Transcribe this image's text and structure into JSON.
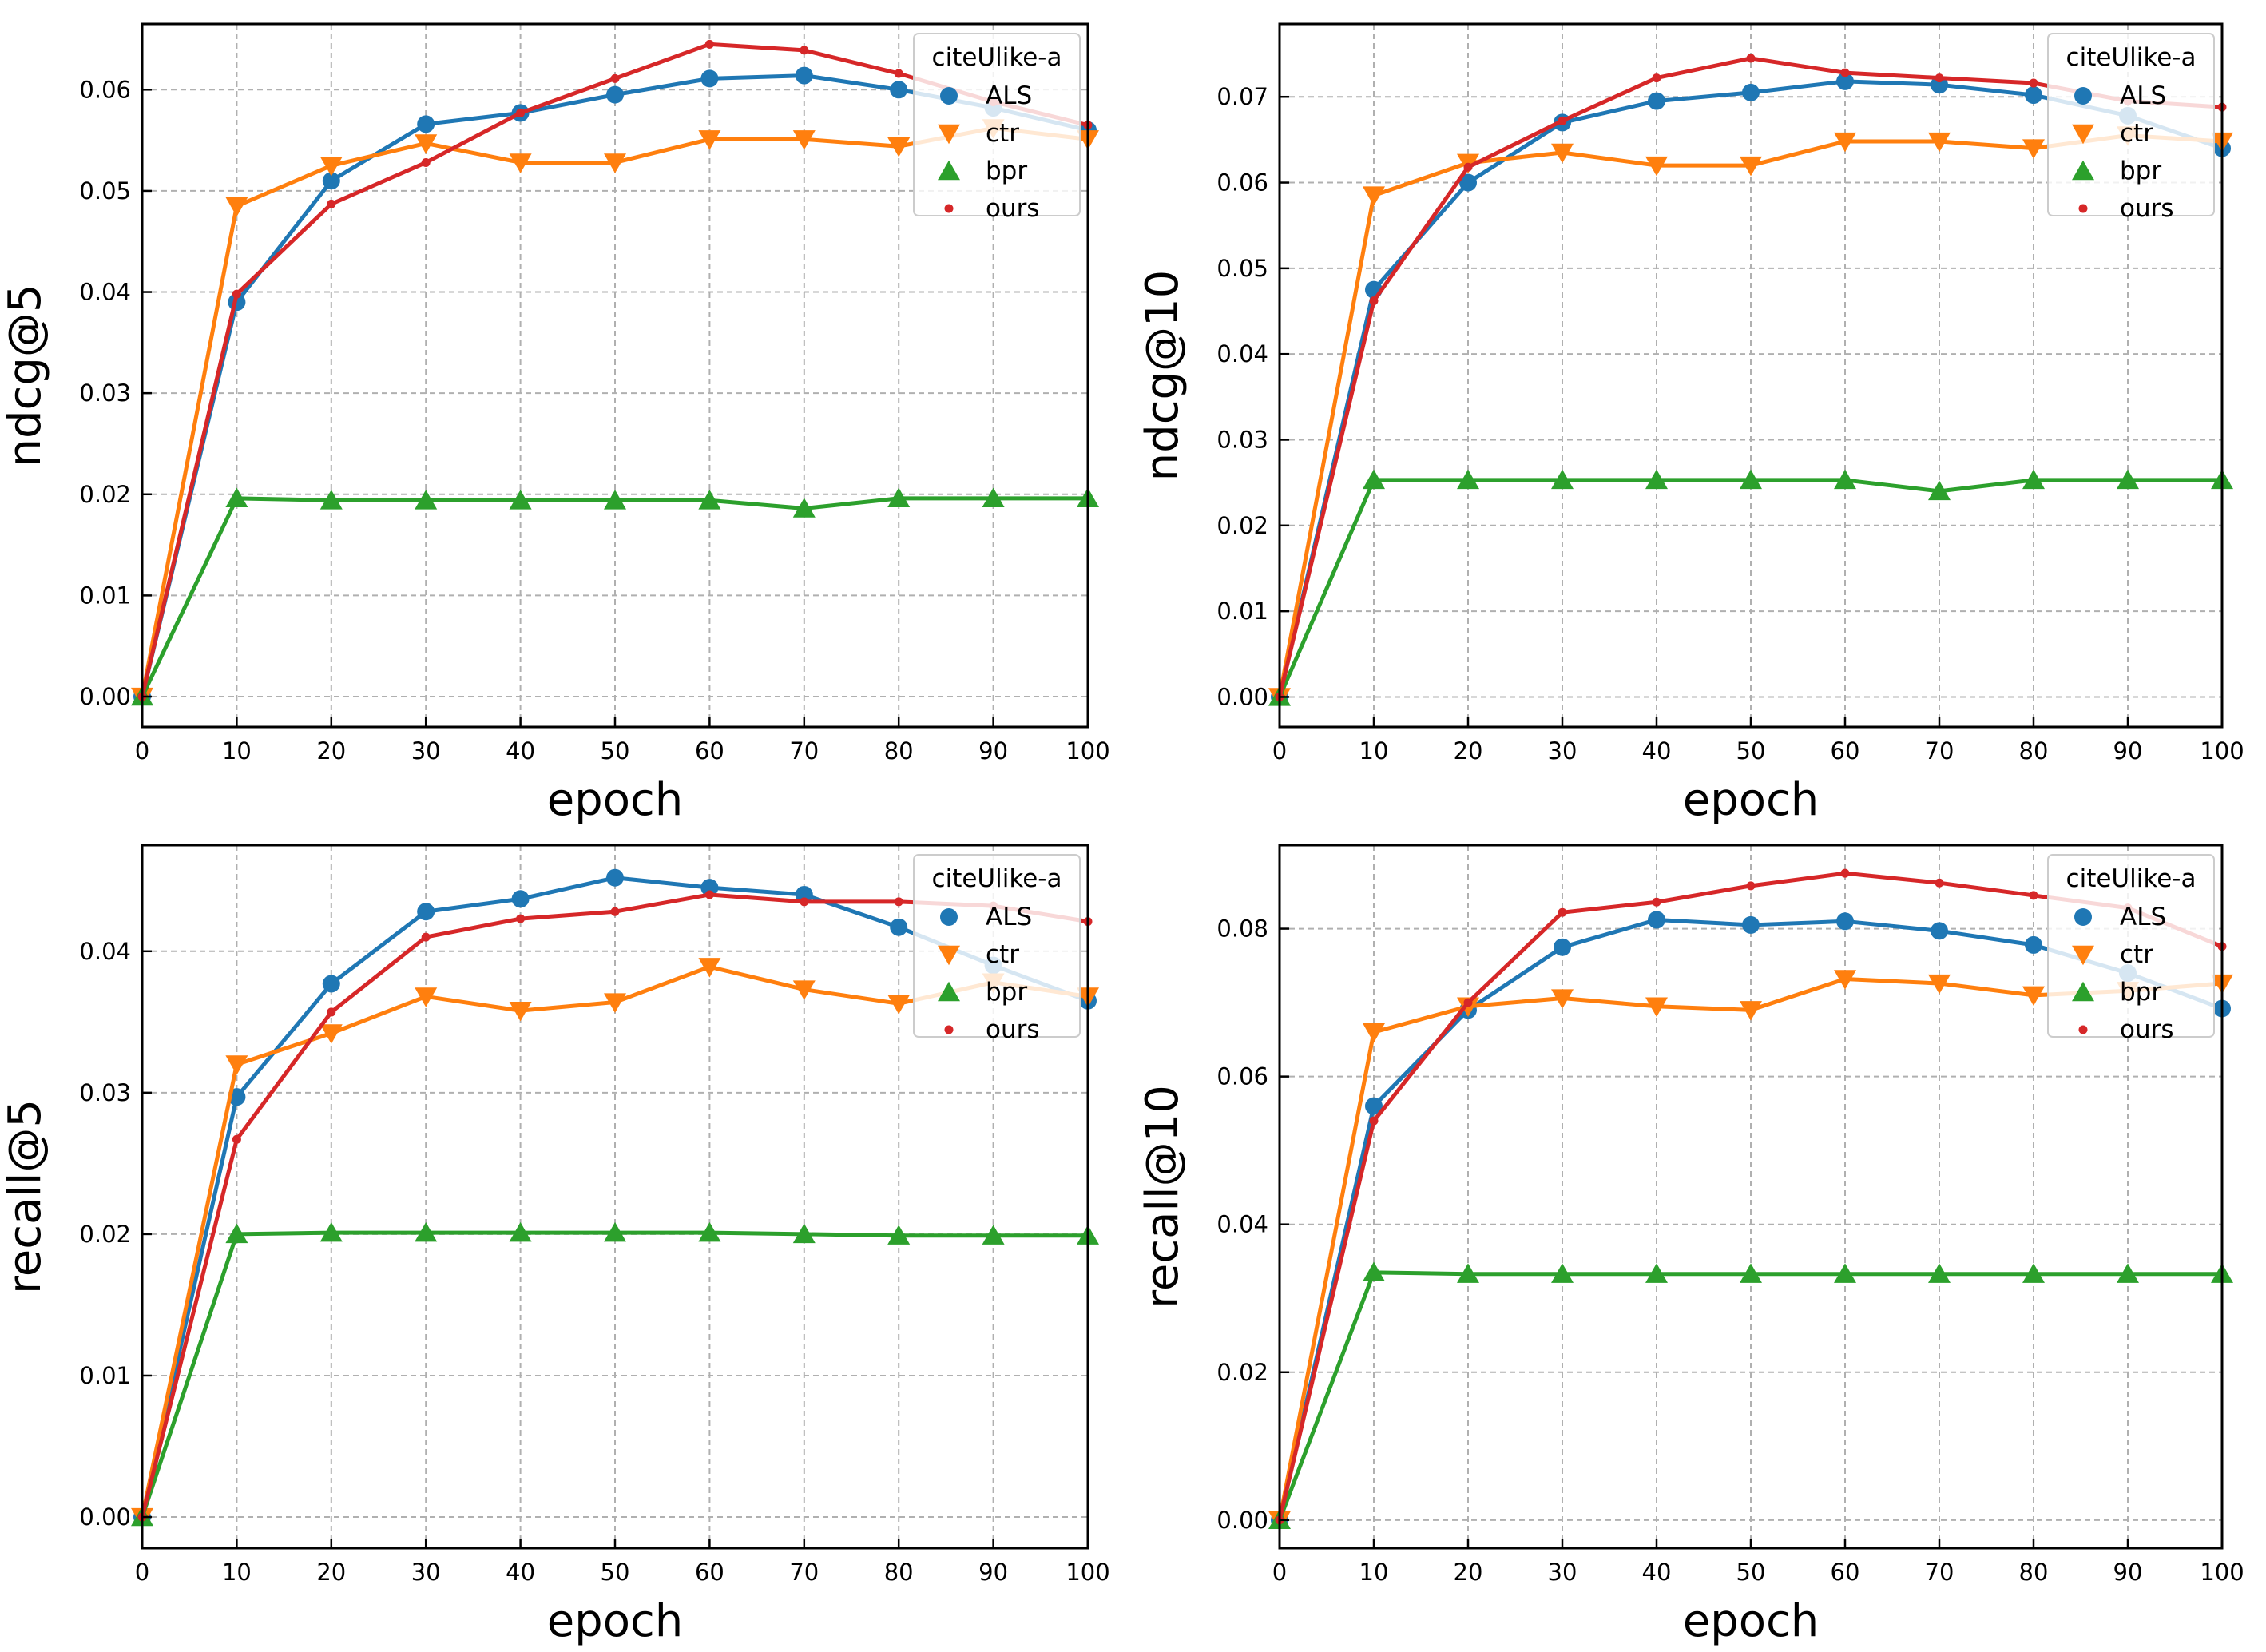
{
  "colors": {
    "ALS": "#1f77b4",
    "ctr": "#ff7f0e",
    "bpr": "#2ca02c",
    "ours": "#d62728",
    "grid": "#b0b0b0",
    "axis": "#000000"
  },
  "chart_data": [
    {
      "type": "line",
      "title": "",
      "xlabel": "epoch",
      "ylabel": "ndcg@5",
      "xlim": [
        0,
        100
      ],
      "ylim": [
        -0.003,
        0.0665
      ],
      "x": [
        0,
        10,
        20,
        30,
        40,
        50,
        60,
        70,
        80,
        90,
        100
      ],
      "xticks": [
        "0",
        "10",
        "20",
        "30",
        "40",
        "50",
        "60",
        "70",
        "80",
        "90",
        "100"
      ],
      "yticks": [
        0.0,
        0.01,
        0.02,
        0.03,
        0.04,
        0.05,
        0.06
      ],
      "ytick_labels": [
        "0.00",
        "0.01",
        "0.02",
        "0.03",
        "0.04",
        "0.05",
        "0.06"
      ],
      "grid": true,
      "legend": {
        "title": "citeUlike-a",
        "location": "top-right",
        "entries": [
          "ALS",
          "ctr",
          "bpr",
          "ours"
        ]
      },
      "series": [
        {
          "name": "ALS",
          "marker": "circle",
          "values": [
            0.0,
            0.039,
            0.051,
            0.0566,
            0.0577,
            0.0595,
            0.0611,
            0.0614,
            0.06,
            0.0582,
            0.056
          ]
        },
        {
          "name": "ctr",
          "marker": "triangle-down",
          "values": [
            0.0,
            0.0485,
            0.0525,
            0.0547,
            0.0528,
            0.0528,
            0.0551,
            0.0551,
            0.0544,
            0.0562,
            0.0551
          ]
        },
        {
          "name": "bpr",
          "marker": "triangle-up",
          "values": [
            0.0,
            0.0196,
            0.0194,
            0.0194,
            0.0194,
            0.0194,
            0.0194,
            0.0186,
            0.0196,
            0.0196,
            0.0196
          ]
        },
        {
          "name": "ours",
          "marker": "point",
          "values": [
            0.0,
            0.0398,
            0.0487,
            0.0528,
            0.0577,
            0.0611,
            0.0645,
            0.0639,
            0.0616,
            0.0588,
            0.0565
          ]
        }
      ]
    },
    {
      "type": "line",
      "title": "",
      "xlabel": "epoch",
      "ylabel": "ndcg@10",
      "xlim": [
        0,
        100
      ],
      "ylim": [
        -0.0035,
        0.0785
      ],
      "x": [
        0,
        10,
        20,
        30,
        40,
        50,
        60,
        70,
        80,
        90,
        100
      ],
      "xticks": [
        "0",
        "10",
        "20",
        "30",
        "40",
        "50",
        "60",
        "70",
        "80",
        "90",
        "100"
      ],
      "yticks": [
        0.0,
        0.01,
        0.02,
        0.03,
        0.04,
        0.05,
        0.06,
        0.07
      ],
      "ytick_labels": [
        "0.00",
        "0.01",
        "0.02",
        "0.03",
        "0.04",
        "0.05",
        "0.06",
        "0.07"
      ],
      "grid": true,
      "legend": {
        "title": "citeUlike-a",
        "location": "top-right",
        "entries": [
          "ALS",
          "ctr",
          "bpr",
          "ours"
        ]
      },
      "series": [
        {
          "name": "ALS",
          "marker": "circle",
          "values": [
            0.0,
            0.0475,
            0.06,
            0.067,
            0.0695,
            0.0705,
            0.0718,
            0.0714,
            0.0702,
            0.0678,
            0.064
          ]
        },
        {
          "name": "ctr",
          "marker": "triangle-down",
          "values": [
            0.0,
            0.0585,
            0.0623,
            0.0635,
            0.062,
            0.062,
            0.0648,
            0.0648,
            0.064,
            0.0655,
            0.0648
          ]
        },
        {
          "name": "bpr",
          "marker": "triangle-up",
          "values": [
            0.0,
            0.0253,
            0.0253,
            0.0253,
            0.0253,
            0.0253,
            0.0253,
            0.024,
            0.0253,
            0.0253,
            0.0253
          ]
        },
        {
          "name": "ours",
          "marker": "point",
          "values": [
            0.0,
            0.0462,
            0.0618,
            0.0672,
            0.0722,
            0.0745,
            0.0728,
            0.0722,
            0.0716,
            0.0695,
            0.0688
          ]
        }
      ]
    },
    {
      "type": "line",
      "title": "",
      "xlabel": "epoch",
      "ylabel": "recall@5",
      "xlim": [
        0,
        100
      ],
      "ylim": [
        -0.0022,
        0.0475
      ],
      "x": [
        0,
        10,
        20,
        30,
        40,
        50,
        60,
        70,
        80,
        90,
        100
      ],
      "xticks": [
        "0",
        "10",
        "20",
        "30",
        "40",
        "50",
        "60",
        "70",
        "80",
        "90",
        "100"
      ],
      "yticks": [
        0.0,
        0.01,
        0.02,
        0.03,
        0.04
      ],
      "ytick_labels": [
        "0.00",
        "0.01",
        "0.02",
        "0.03",
        "0.04"
      ],
      "grid": true,
      "legend": {
        "title": "citeUlike-a",
        "location": "top-right",
        "entries": [
          "ALS",
          "ctr",
          "bpr",
          "ours"
        ]
      },
      "series": [
        {
          "name": "ALS",
          "marker": "circle",
          "values": [
            0.0,
            0.0297,
            0.0377,
            0.0428,
            0.0437,
            0.0452,
            0.0445,
            0.044,
            0.0417,
            0.039,
            0.0365
          ]
        },
        {
          "name": "ctr",
          "marker": "triangle-down",
          "values": [
            0.0,
            0.032,
            0.0342,
            0.0368,
            0.0358,
            0.0364,
            0.0389,
            0.0373,
            0.0363,
            0.0378,
            0.0368
          ]
        },
        {
          "name": "bpr",
          "marker": "triangle-up",
          "values": [
            0.0,
            0.02,
            0.0201,
            0.0201,
            0.0201,
            0.0201,
            0.0201,
            0.02,
            0.0199,
            0.0199,
            0.0199
          ]
        },
        {
          "name": "ours",
          "marker": "point",
          "values": [
            0.0,
            0.0267,
            0.0357,
            0.041,
            0.0423,
            0.0428,
            0.044,
            0.0435,
            0.0435,
            0.0432,
            0.0421
          ]
        }
      ]
    },
    {
      "type": "line",
      "title": "",
      "xlabel": "epoch",
      "ylabel": "recall@10",
      "xlim": [
        0,
        100
      ],
      "ylim": [
        -0.0038,
        0.0913
      ],
      "x": [
        0,
        10,
        20,
        30,
        40,
        50,
        60,
        70,
        80,
        90,
        100
      ],
      "xticks": [
        "0",
        "10",
        "20",
        "30",
        "40",
        "50",
        "60",
        "70",
        "80",
        "90",
        "100"
      ],
      "yticks": [
        0.0,
        0.02,
        0.04,
        0.06,
        0.08
      ],
      "ytick_labels": [
        "0.00",
        "0.02",
        "0.04",
        "0.06",
        "0.08"
      ],
      "grid": true,
      "legend": {
        "title": "citeUlike-a",
        "location": "top-right",
        "entries": [
          "ALS",
          "ctr",
          "bpr",
          "ours"
        ]
      },
      "series": [
        {
          "name": "ALS",
          "marker": "circle",
          "values": [
            0.0,
            0.056,
            0.069,
            0.0775,
            0.0812,
            0.0805,
            0.081,
            0.0797,
            0.0778,
            0.074,
            0.0692
          ]
        },
        {
          "name": "ctr",
          "marker": "triangle-down",
          "values": [
            0.0,
            0.066,
            0.0695,
            0.0706,
            0.0695,
            0.069,
            0.0732,
            0.0726,
            0.071,
            0.0716,
            0.0726
          ]
        },
        {
          "name": "bpr",
          "marker": "triangle-up",
          "values": [
            0.0,
            0.0335,
            0.0333,
            0.0333,
            0.0333,
            0.0333,
            0.0333,
            0.0333,
            0.0333,
            0.0333,
            0.0333
          ]
        },
        {
          "name": "ours",
          "marker": "point",
          "values": [
            0.0,
            0.054,
            0.07,
            0.0822,
            0.0836,
            0.0858,
            0.0875,
            0.0862,
            0.0845,
            0.0828,
            0.0776
          ]
        }
      ]
    }
  ]
}
